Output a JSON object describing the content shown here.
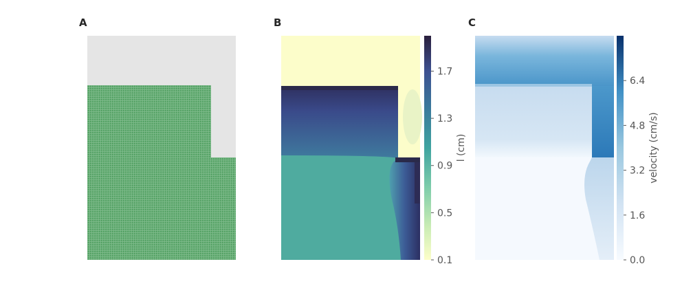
{
  "panels": {
    "a": {
      "label": "A"
    },
    "b": {
      "label": "B"
    },
    "c": {
      "label": "C"
    }
  },
  "chart_data": [
    {
      "type": "scatter",
      "panel": "A",
      "description_free": true,
      "background_color": "#e5e5e5",
      "point_color": "#5aa469",
      "grid": false
    },
    {
      "type": "heatmap",
      "panel": "B",
      "colormap": "crest",
      "colorbar": {
        "label": "l (cm)",
        "ticks": [
          "0.1",
          "0.5",
          "0.9",
          "1.3",
          "1.7"
        ],
        "range": [
          0.1,
          2.0
        ]
      },
      "grid": false
    },
    {
      "type": "heatmap",
      "panel": "C",
      "colormap": "Blues",
      "colorbar": {
        "label": "velocity (cm/s)",
        "ticks": [
          "0.0",
          "1.6",
          "3.2",
          "4.8",
          "6.4"
        ],
        "range": [
          0.0,
          8.0
        ]
      },
      "grid": false
    }
  ]
}
